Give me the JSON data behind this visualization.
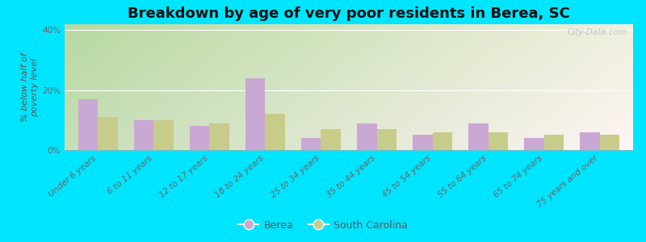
{
  "title": "Breakdown by age of very poor residents in Berea, SC",
  "ylabel": "% below half of\npoverty level",
  "categories": [
    "Under 6 years",
    "6 to 11 years",
    "12 to 17 years",
    "18 to 24 years",
    "25 to 34 years",
    "35 to 44 years",
    "45 to 54 years",
    "55 to 64 years",
    "65 to 74 years",
    "75 years and over"
  ],
  "berea_values": [
    17,
    10,
    8,
    24,
    4,
    9,
    5,
    9,
    4,
    6
  ],
  "sc_values": [
    11,
    10,
    9,
    12,
    7,
    7,
    6,
    6,
    5,
    5
  ],
  "berea_color": "#c9a8d4",
  "sc_color": "#c8cc8a",
  "ylim": [
    0,
    42
  ],
  "yticks": [
    0,
    20,
    40
  ],
  "ytick_labels": [
    "0%",
    "20%",
    "40%"
  ],
  "bar_width": 0.35,
  "background_outer": "#00e5ff",
  "grid_color": "#ffffff",
  "title_fontsize": 13,
  "axis_fontsize": 8,
  "tick_fontsize": 7.5,
  "legend_labels": [
    "Berea",
    "South Carolina"
  ],
  "watermark": "City-Data.com"
}
